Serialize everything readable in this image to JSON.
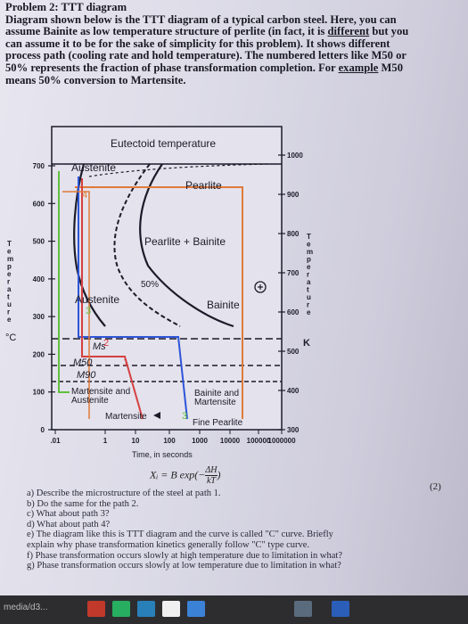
{
  "problem": {
    "heading": "Problem 2: TTT diagram",
    "line1": "Diagram shown below is the TTT diagram of a typical carbon steel.  Here, you can",
    "line2a": "assume Bainite as low temperature structure of perlite (in fact, it is ",
    "line2u": "different",
    "line2b": " but you",
    "line3": "can assume it to be for the sake of simplicity for this problem).  It shows different",
    "line4": "process path (cooling rate and hold temperature).  The numbered letters like M50 or",
    "line5a": "50% represents the fraction of phase transformation completion.  For ",
    "line5u": "example",
    "line5b": " M50",
    "line6": "means 50% conversion to Martensite."
  },
  "diagram": {
    "eutectoid": "Eutectoid temperature",
    "austenite_top": "Austenite",
    "pearlite": "Pearlite",
    "pearlite_bainite": "Pearlite + Bainite",
    "fifty": "50%",
    "austenite_mid": "Austenite",
    "bainite": "Bainite",
    "ms": "Ms",
    "m50": "M50",
    "m90": "M90",
    "mart_aust_1": "Martensite and",
    "mart_aust_2": "Austenite",
    "bain_mart_1": "Bainite and",
    "bain_mart_2": "Martensite",
    "martensite": "Martensite",
    "fine_pearlite": "Fine Pearlite",
    "path1": "1",
    "path2": "2",
    "path3": "3",
    "path3b": "3",
    "path4": "4",
    "k": "K",
    "degc": "°C",
    "time_label": "Time, in seconds",
    "temp_left": [
      "T",
      "e",
      "m",
      "p",
      "e",
      "r",
      "a",
      "t",
      "u",
      "r",
      "e"
    ],
    "temp_right": [
      "T",
      "e",
      "m",
      "p",
      "e",
      "r",
      "a",
      "t",
      "u",
      "r",
      "e"
    ],
    "c_ticks": [
      "700",
      "600",
      "500",
      "400",
      "300",
      "200",
      "100",
      "0"
    ],
    "k_ticks": [
      "1000",
      "900",
      "800",
      "700",
      "600",
      "500",
      "400",
      "300"
    ],
    "time_ticks": [
      ".01",
      "1",
      "10",
      "100",
      "1000",
      "10000",
      "100000",
      "1000000"
    ]
  },
  "chart_data": {
    "type": "line",
    "title": "",
    "xlabel": "Time, in seconds",
    "ylabel": "Temperature",
    "x_scale": "log",
    "x_ticks": [
      0.01,
      1,
      10,
      100,
      1000,
      10000,
      100000,
      1000000
    ],
    "y_ticks_left_C": [
      0,
      100,
      200,
      300,
      400,
      500,
      600,
      700
    ],
    "y_ticks_right_K": [
      300,
      400,
      500,
      600,
      700,
      800,
      900,
      1000
    ],
    "annotations": [
      "Eutectoid temperature",
      "Austenite",
      "Pearlite",
      "Pearlite + Bainite",
      "50%",
      "Bainite",
      "Ms",
      "M50",
      "M90",
      "Martensite and Austenite",
      "Bainite and Martensite",
      "Martensite",
      "Fine Pearlite"
    ]
  },
  "formula": {
    "lhs": "Xᵢ = B exp(−",
    "num": "ΔH",
    "den": "kT",
    "rhs": ")"
  },
  "qnum": "(2)",
  "questions": [
    "a)  Describe the microstructure of the steel at path 1.",
    "b)  Do the same for the path 2.",
    "c)  What about path 3?",
    "d)  What about path 4?",
    "e)  The diagram like this is TTT diagram and the curve is called \"C\" curve. Briefly",
    "      explain why phase transformation kinetics generally follow \"C\" type curve.",
    "f)  Phase transformation occurs slowly at high temperature due to limitation in what?",
    "g)  Phase transformation occurs slowly at low temperature due to limitation in what?"
  ],
  "taskbar": {
    "media": "media/d3..."
  },
  "colors": {
    "path_green": "#5fbf3f",
    "path_orange": "#e07a3a",
    "path_blue": "#2d55d8",
    "path_red": "#d44040",
    "curve": "#1b1b2a"
  }
}
